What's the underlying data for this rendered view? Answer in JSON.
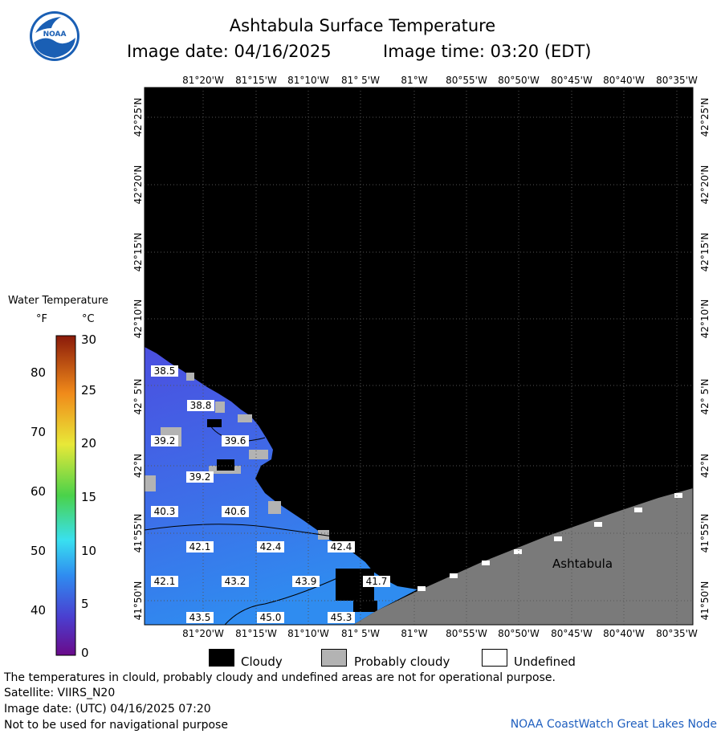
{
  "title": "Ashtabula Surface Temperature",
  "image_date_line": "Image date: 04/16/2025",
  "image_time_line": "Image time: 03:20 (EDT)",
  "lon_labels": [
    "81°20'W",
    "81°15'W",
    "81°10'W",
    "81° 5'W",
    "81°W",
    "80°55'W",
    "80°50'W",
    "80°45'W",
    "80°40'W",
    "80°35'W"
  ],
  "lat_labels": [
    "42°25'N",
    "42°20'N",
    "42°15'N",
    "42°10'N",
    "42° 5'N",
    "42°N",
    "41°55'N",
    "41°50'N"
  ],
  "place_label": "Ashtabula",
  "temperature_labels": [
    {
      "v": "38.5"
    },
    {
      "v": "38.8"
    },
    {
      "v": "39.2"
    },
    {
      "v": "39.6"
    },
    {
      "v": "39.2"
    },
    {
      "v": "40.3"
    },
    {
      "v": "40.6"
    },
    {
      "v": "42.1"
    },
    {
      "v": "42.4"
    },
    {
      "v": "42.4"
    },
    {
      "v": "42.1"
    },
    {
      "v": "43.2"
    },
    {
      "v": "43.9"
    },
    {
      "v": "41.7"
    },
    {
      "v": "43.5"
    },
    {
      "v": "45.0"
    },
    {
      "v": "45.3"
    }
  ],
  "legend": {
    "title": "Water Temperature",
    "unit_f": "°F",
    "unit_c": "°C",
    "f_ticks": [
      "80",
      "70",
      "60",
      "50",
      "40"
    ],
    "c_ticks": [
      "30",
      "25",
      "20",
      "15",
      "10",
      "5",
      "0"
    ]
  },
  "key": {
    "cloudy": "Cloudy",
    "probably_cloudy": "Probably cloudy",
    "undefined": "Undefined"
  },
  "footer": {
    "disclaimer": "The temperatures in clould, probably cloudy and undefined areas are not for operational purpose.",
    "satellite": "Satellite: VIIRS_N20",
    "utc_date": "Image date: (UTC) 04/16/2025  07:20",
    "nav": "Not to be used for navigational purpose",
    "credit": "NOAA CoastWatch Great Lakes Node"
  },
  "colors": {
    "cloudy": "#000000",
    "land": "#7a7a7a",
    "water_cold": "#4b4fe0",
    "water_warm": "#2f8cf0",
    "probably_cloudy": "#b3b3b3",
    "credit": "#1f5fbf"
  },
  "logo": "NOAA"
}
